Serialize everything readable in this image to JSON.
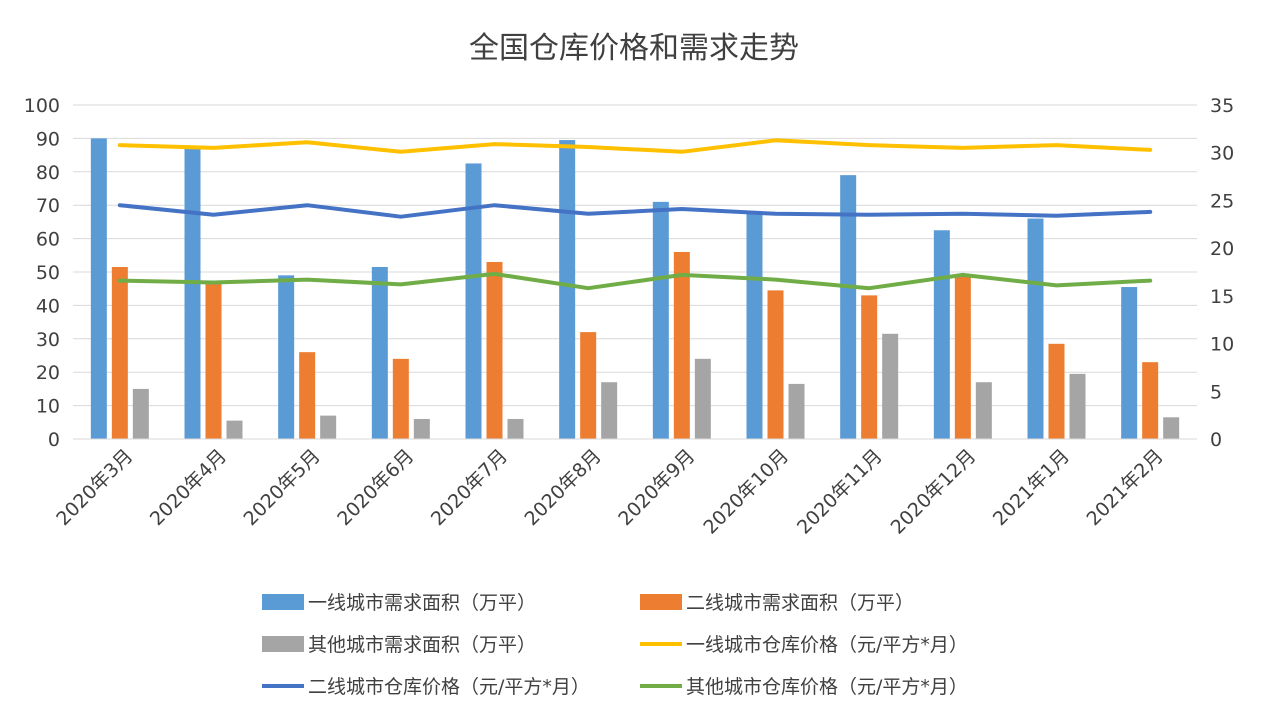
{
  "chart_data": {
    "type": "bar",
    "title": "全国仓库价格和需求走势",
    "categories": [
      "2020年3月",
      "2020年4月",
      "2020年5月",
      "2020年6月",
      "2020年7月",
      "2020年8月",
      "2020年9月",
      "2020年10月",
      "2020年11月",
      "2020年12月",
      "2021年1月",
      "2021年2月"
    ],
    "y_left": {
      "min": 0,
      "max": 100,
      "ticks": [
        0,
        10,
        20,
        30,
        40,
        50,
        60,
        70,
        80,
        90,
        100
      ]
    },
    "y_right": {
      "min": 0,
      "max": 35,
      "ticks": [
        0,
        5,
        10,
        15,
        20,
        25,
        30,
        35
      ]
    },
    "grid": true,
    "legend_position": "bottom",
    "bar_series": [
      {
        "name": "一线城市需求面积（万平）",
        "color": "#5b9bd5",
        "values": [
          90,
          87,
          49,
          51.5,
          82.5,
          89.5,
          71,
          68,
          79,
          62.5,
          66,
          45.5
        ]
      },
      {
        "name": "二线城市需求面积（万平）",
        "color": "#ed7d31",
        "values": [
          51.5,
          47,
          26,
          24,
          53,
          32,
          56,
          44.5,
          43,
          48.5,
          28.5,
          23
        ]
      },
      {
        "name": "其他城市需求面积（万平）",
        "color": "#a5a5a5",
        "values": [
          15,
          5.5,
          7,
          6,
          6,
          17,
          24,
          16.5,
          31.5,
          17,
          19.5,
          6.5
        ]
      }
    ],
    "line_series": [
      {
        "name": "一线城市仓库价格（元/平方*月）",
        "color": "#ffc000",
        "values": [
          30.8,
          30.5,
          31.1,
          30.1,
          30.9,
          30.6,
          30.1,
          31.3,
          30.8,
          30.5,
          30.8,
          30.3
        ]
      },
      {
        "name": "二线城市仓库价格（元/平方*月）",
        "color": "#4472c4",
        "values": [
          24.5,
          23.5,
          24.5,
          23.3,
          24.5,
          23.6,
          24.1,
          23.6,
          23.5,
          23.6,
          23.4,
          23.8
        ]
      },
      {
        "name": "其他城市仓库价格（元/平方*月）",
        "color": "#70ad47",
        "values": [
          16.6,
          16.4,
          16.7,
          16.2,
          17.3,
          15.8,
          17.2,
          16.7,
          15.8,
          17.2,
          16.1,
          16.6
        ]
      }
    ]
  }
}
